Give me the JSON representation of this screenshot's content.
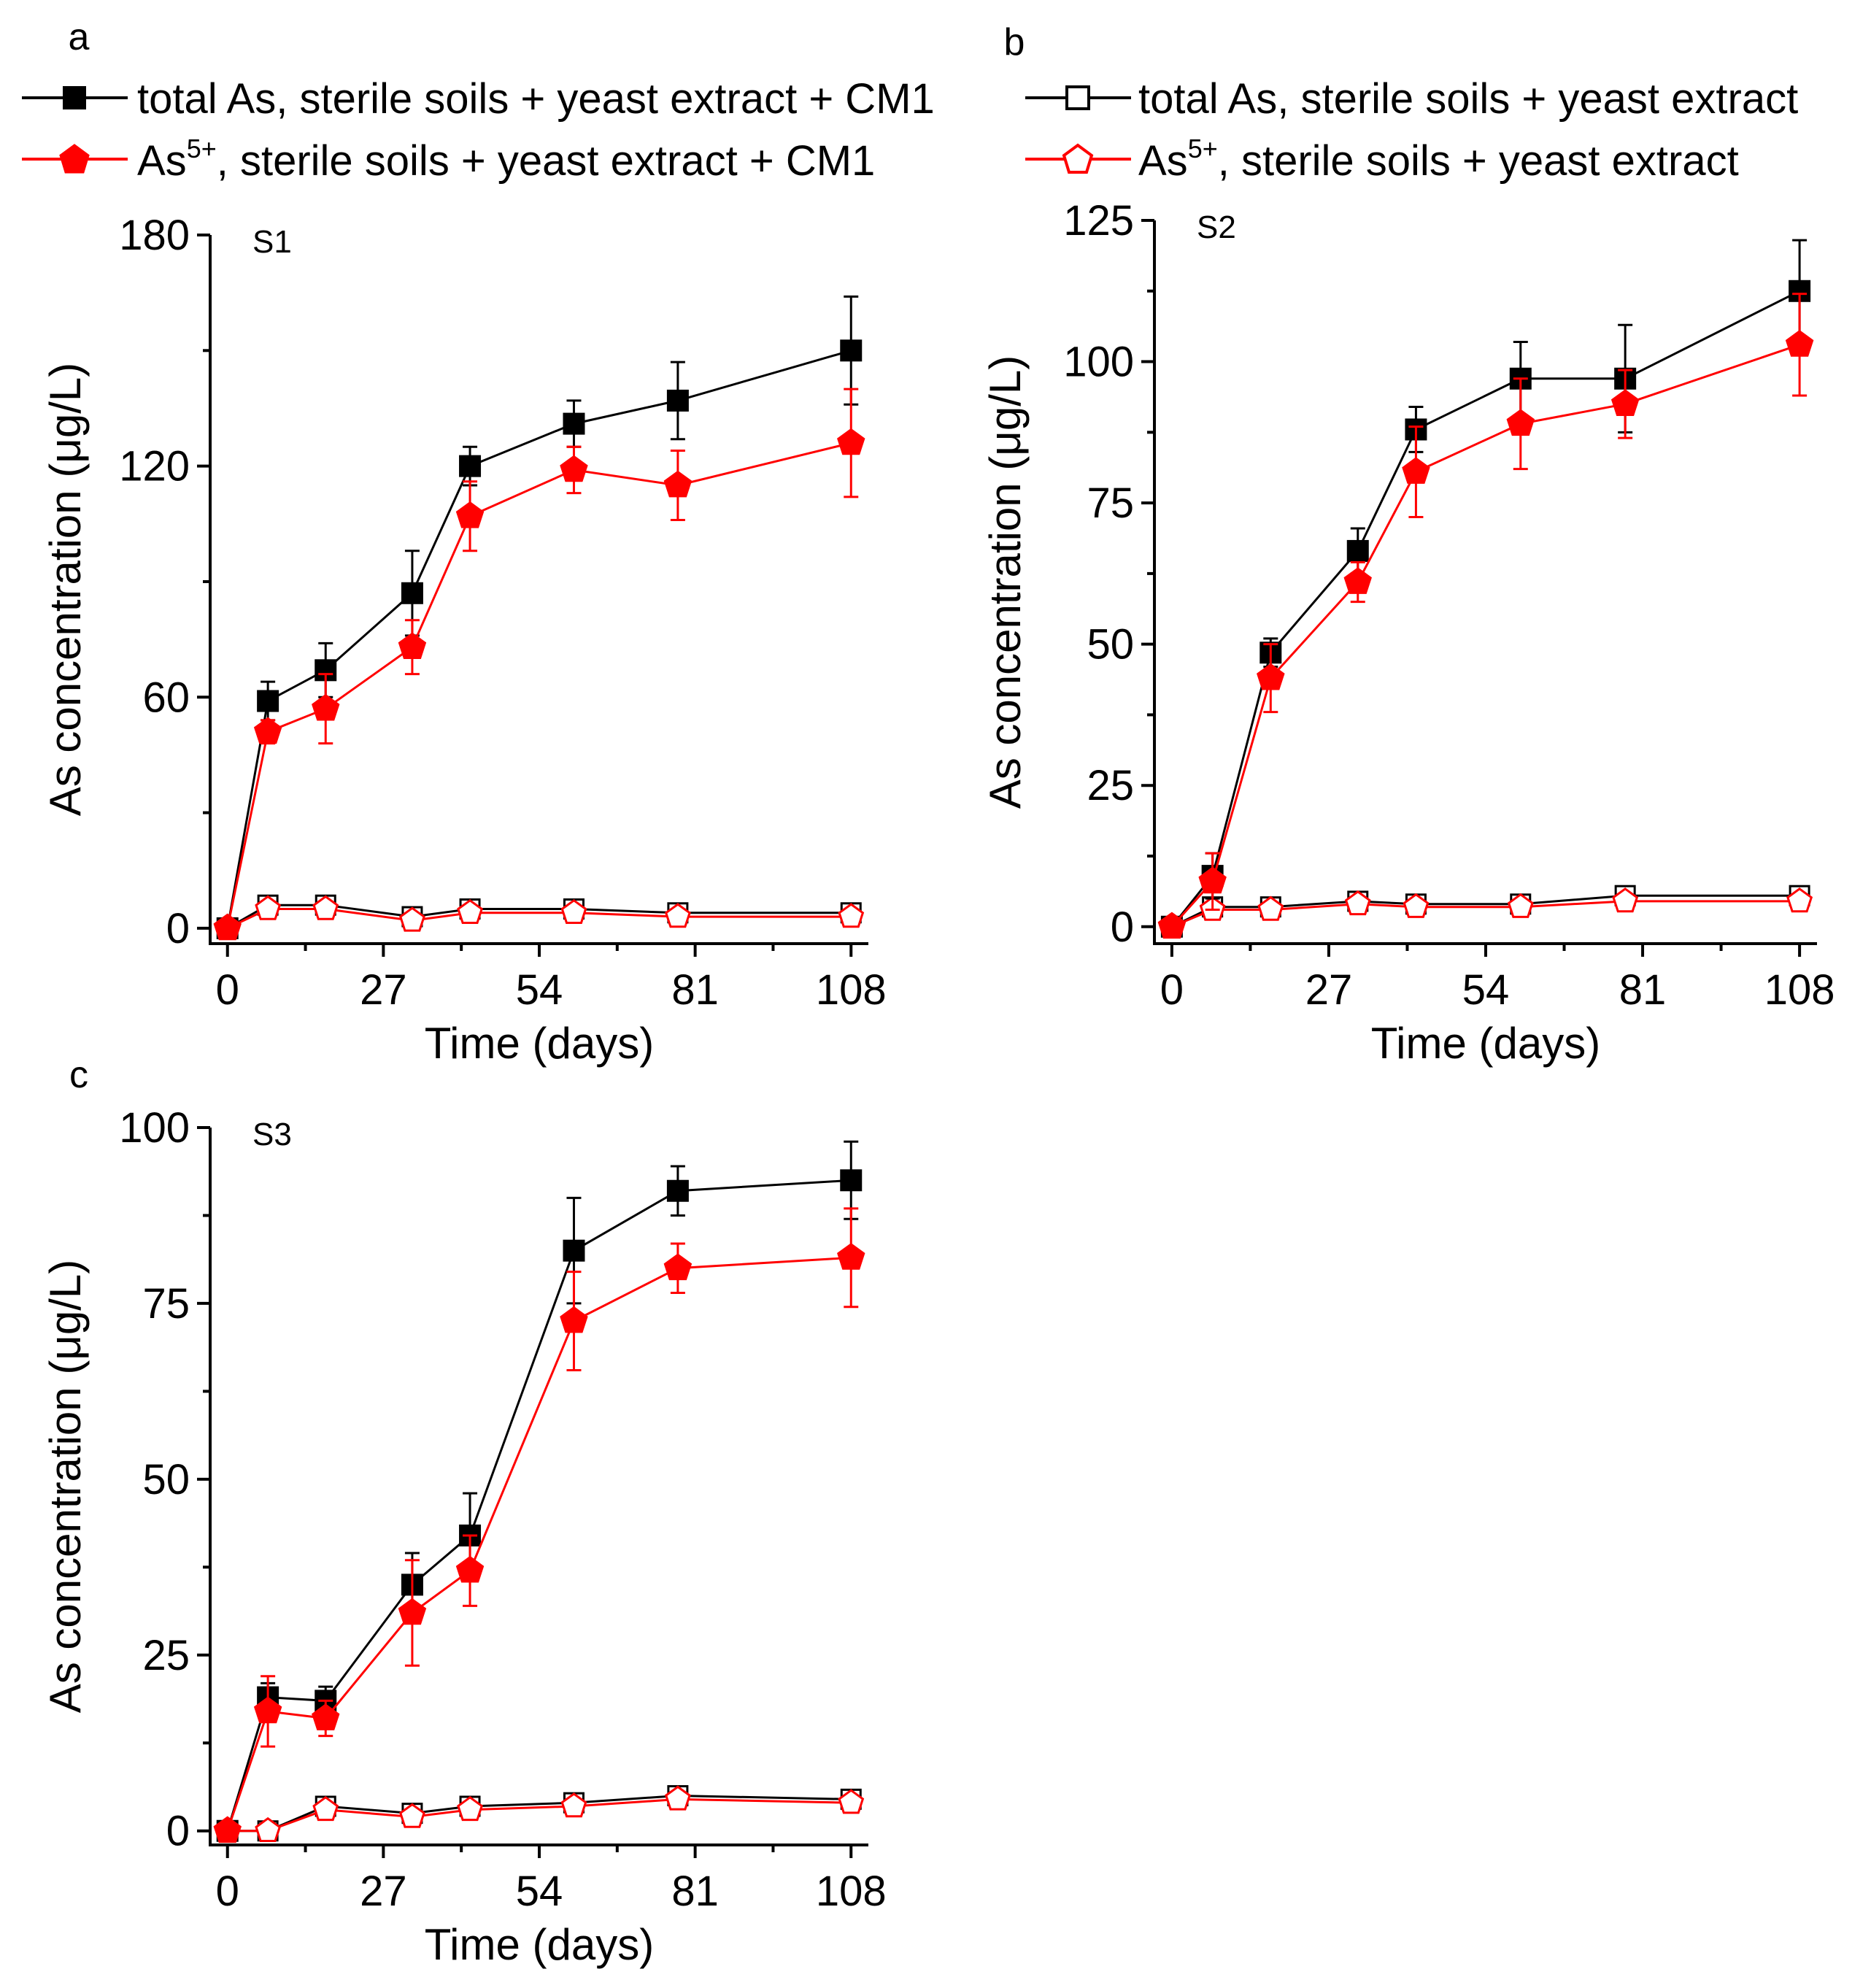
{
  "legend": {
    "entries": [
      {
        "key": "total_cm1",
        "text": "total As, sterile soils + yeast extract + CM1"
      },
      {
        "key": "as5_cm1",
        "prefix": "As",
        "sup": "5+",
        "suffix": ", sterile soils + yeast extract + CM1"
      },
      {
        "key": "total_ctrl",
        "text": "total As, sterile soils + yeast extract"
      },
      {
        "key": "as5_ctrl",
        "prefix": "As",
        "sup": "5+",
        "suffix": ", sterile soils + yeast extract"
      }
    ]
  },
  "colors": {
    "black": "#000000",
    "red": "#ff0000"
  },
  "chart_data": [
    {
      "panel": "a",
      "title": "S1",
      "type": "line",
      "xlabel": "Time (days)",
      "ylabel": "As concentration (μg/L)",
      "xlim": [
        -3,
        111
      ],
      "ylim": [
        -4,
        180
      ],
      "xticks": [
        0,
        27,
        54,
        81,
        108
      ],
      "yticks": [
        0,
        60,
        120,
        180
      ],
      "x": [
        0,
        7,
        17,
        32,
        42,
        60,
        78,
        108
      ],
      "series": [
        {
          "key": "total_cm1",
          "color": "#000000",
          "marker": "square-filled",
          "values": [
            0,
            59,
            67,
            87,
            120,
            131,
            137,
            150
          ],
          "errors": [
            0,
            5,
            7,
            11,
            5,
            6,
            10,
            14
          ]
        },
        {
          "key": "as5_cm1",
          "color": "#ff0000",
          "marker": "pentagon-filled",
          "values": [
            0,
            51,
            57,
            73,
            107,
            119,
            115,
            126
          ],
          "errors": [
            0,
            3,
            9,
            7,
            9,
            6,
            9,
            14
          ]
        },
        {
          "key": "total_ctrl",
          "color": "#000000",
          "marker": "square-open",
          "values": [
            0,
            6,
            6,
            3,
            5,
            5,
            4,
            4
          ],
          "errors": [
            0,
            1,
            1,
            1,
            1,
            1,
            1,
            1
          ]
        },
        {
          "key": "as5_ctrl",
          "color": "#ff0000",
          "marker": "pentagon-open",
          "values": [
            0,
            5,
            5,
            2,
            4,
            4,
            3,
            3
          ],
          "errors": [
            0,
            1,
            1,
            1,
            1,
            1,
            1,
            1
          ]
        }
      ]
    },
    {
      "panel": "b",
      "title": "S2",
      "type": "line",
      "xlabel": "Time (days)",
      "ylabel": "As concentration (μg/L)",
      "xlim": [
        -3,
        111
      ],
      "ylim": [
        -3,
        125
      ],
      "xticks": [
        0,
        27,
        54,
        81,
        108
      ],
      "yticks": [
        0,
        25,
        50,
        75,
        100,
        125
      ],
      "x": [
        0,
        7,
        17,
        32,
        42,
        60,
        78,
        108
      ],
      "series": [
        {
          "key": "total_cm1",
          "color": "#000000",
          "marker": "square-filled",
          "values": [
            0,
            9,
            48.5,
            66.5,
            88,
            97,
            97,
            112.5
          ],
          "errors": [
            0,
            4,
            2.5,
            4,
            4,
            6.5,
            9.5,
            9
          ]
        },
        {
          "key": "as5_cm1",
          "color": "#ff0000",
          "marker": "pentagon-filled",
          "values": [
            0,
            8,
            44,
            61,
            80.5,
            89,
            92.5,
            103
          ],
          "errors": [
            0,
            5,
            6,
            3.5,
            8,
            8,
            6,
            9
          ]
        },
        {
          "key": "total_ctrl",
          "color": "#000000",
          "marker": "square-open",
          "values": [
            0,
            3.5,
            3.5,
            4.5,
            4,
            4,
            5.5,
            5.5
          ],
          "errors": [
            0,
            1,
            1,
            1,
            1,
            1,
            1,
            1
          ]
        },
        {
          "key": "as5_ctrl",
          "color": "#ff0000",
          "marker": "pentagon-open",
          "values": [
            0,
            3,
            3,
            4,
            3.5,
            3.5,
            4.5,
            4.5
          ],
          "errors": [
            0,
            1,
            1,
            1,
            1,
            1,
            1,
            1
          ]
        }
      ]
    },
    {
      "panel": "c",
      "title": "S3",
      "type": "line",
      "xlabel": "Time (days)",
      "ylabel": "As concentration (μg/L)",
      "xlim": [
        -3,
        111
      ],
      "ylim": [
        -2,
        100
      ],
      "xticks": [
        0,
        27,
        54,
        81,
        108
      ],
      "yticks": [
        0,
        25,
        50,
        75,
        100
      ],
      "x": [
        0,
        7,
        17,
        32,
        42,
        60,
        78,
        108
      ],
      "series": [
        {
          "key": "total_cm1",
          "color": "#000000",
          "marker": "square-filled",
          "values": [
            0,
            19,
            18.5,
            35,
            42,
            82.5,
            91,
            92.5
          ],
          "errors": [
            0,
            2,
            2,
            4.5,
            6,
            7.5,
            3.5,
            5.5
          ]
        },
        {
          "key": "as5_cm1",
          "color": "#ff0000",
          "marker": "pentagon-filled",
          "values": [
            0,
            17,
            16,
            31,
            37,
            72.5,
            80,
            81.5
          ],
          "errors": [
            0,
            5,
            2.5,
            7.5,
            5,
            7,
            3.5,
            7
          ]
        },
        {
          "key": "total_ctrl",
          "color": "#000000",
          "marker": "square-open",
          "values": [
            0,
            0,
            3.5,
            2.5,
            3.5,
            4,
            5,
            4.5
          ],
          "errors": [
            0,
            0.5,
            1,
            1,
            1,
            1,
            1,
            1
          ]
        },
        {
          "key": "as5_ctrl",
          "color": "#ff0000",
          "marker": "pentagon-open",
          "values": [
            0,
            0,
            3,
            2,
            3,
            3.5,
            4.5,
            4
          ],
          "errors": [
            0,
            0.5,
            1,
            1,
            1,
            1,
            1,
            1
          ]
        }
      ]
    }
  ]
}
